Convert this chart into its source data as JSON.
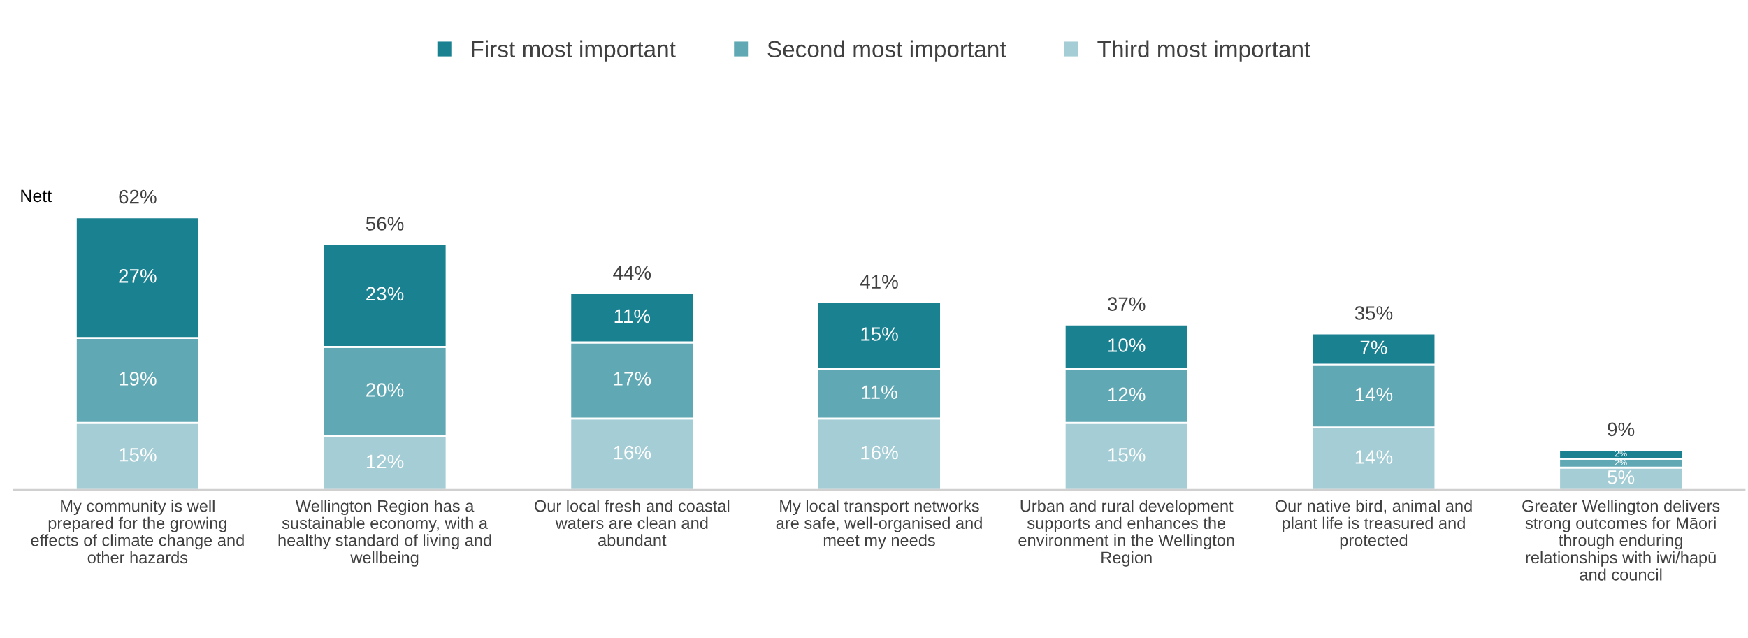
{
  "chart_data": {
    "type": "bar",
    "stacked": true,
    "legend": "top",
    "grid": false,
    "categories": [
      "My community is well\nprepared for the growing\neffects of climate change and\nother hazards",
      "Wellington Region has a\nsustainable economy, with a\nhealthy standard of living and\nwellbeing",
      "Our local fresh and coastal\nwaters are clean and\nabundant",
      "My local transport networks\nare safe, well-organised and\nmeet my needs",
      "Urban and rural development\nsupports and enhances the\nenvironment in the Wellington\nRegion",
      "Our native bird, animal and\nplant life is treasured and\nprotected",
      "Greater Wellington delivers\nstrong outcomes for Māori\nthrough enduring\nrelationships with iwi/hapū\nand council"
    ],
    "series": [
      {
        "name": "Third most important",
        "color": "#a5cdd5",
        "values": [
          15,
          12,
          16,
          16,
          15,
          14,
          5
        ],
        "value_labels": [
          "15%",
          "12%",
          "16%",
          "16%",
          "15%",
          "14%",
          "5%"
        ]
      },
      {
        "name": "Second most important",
        "color": "#5fa8b4",
        "values": [
          19,
          20,
          17,
          11,
          12,
          14,
          2
        ],
        "value_labels": [
          "19%",
          "20%",
          "17%",
          "11%",
          "12%",
          "14%",
          "2%"
        ]
      },
      {
        "name": "First most important",
        "color": "#1a8191",
        "values": [
          27,
          23,
          11,
          15,
          10,
          7,
          2
        ],
        "value_labels": [
          "27%",
          "23%",
          "11%",
          "15%",
          "10%",
          "7%",
          "2%"
        ]
      }
    ],
    "totals": [
      "62%",
      "56%",
      "44%",
      "41%",
      "37%",
      "35%",
      "9%"
    ],
    "annotations": [
      "Nett"
    ]
  }
}
